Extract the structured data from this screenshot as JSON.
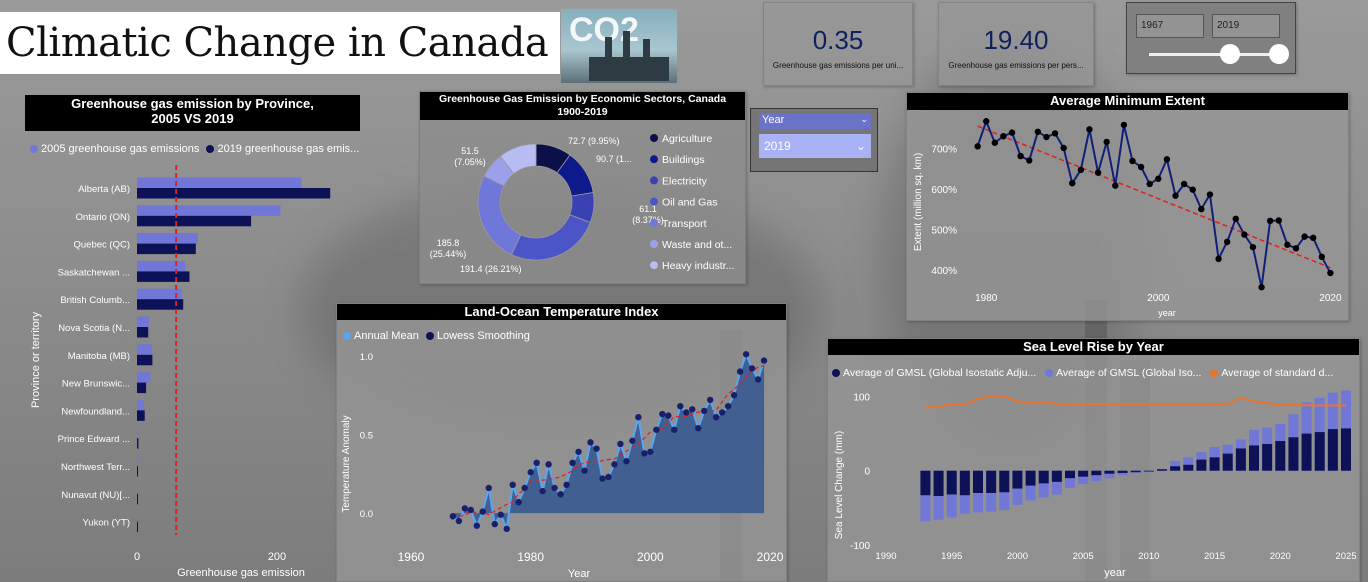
{
  "page": {
    "title": "Climatic Change in Canada",
    "image_text": "CO2"
  },
  "kpis": [
    {
      "value": "0.35",
      "label": "Greenhouse gas emissions per uni..."
    },
    {
      "value": "19.40",
      "label": "Greenhouse gas emissions per pers..."
    }
  ],
  "range_slicer": {
    "from": "1967",
    "to": "2019"
  },
  "year_slicer": {
    "label": "Year",
    "selected": "2019"
  },
  "colors": {
    "light_series": "#7177d6",
    "dark_series": "#0d1256",
    "red": "#e02020",
    "orange": "#e8742e",
    "accent_blue": "#5aa6ef"
  },
  "chart_data": [
    {
      "id": "province",
      "type": "bar",
      "orientation": "horizontal",
      "title": "Greenhouse gas emission by Province, 2005 VS 2019",
      "xlabel": "Greenhouse gas emission",
      "ylabel": "Province or territory",
      "xlim": [
        0,
        280
      ],
      "xticks": [
        "0",
        "200"
      ],
      "categories": [
        "Alberta (AB)",
        "Ontario (ON)",
        "Quebec (QC)",
        "Saskatchewan ...",
        "British Columb...",
        "Nova Scotia (N...",
        "Manitoba (MB)",
        "New Brunswic...",
        "Newfoundland...",
        "Prince Edward ...",
        "Northwest Terr...",
        "Nunavut (NU)[...",
        "Yukon (YT)"
      ],
      "series": [
        {
          "name": "2005 greenhouse gas emissions",
          "values": [
            235,
            205,
            87,
            69,
            64,
            17,
            21,
            19,
            10,
            2,
            2,
            1,
            1
          ]
        },
        {
          "name": "2019 greenhouse gas emis...",
          "values": [
            276,
            163,
            84,
            75,
            66,
            16,
            22,
            13,
            11,
            2,
            1,
            1,
            1
          ]
        }
      ],
      "reference_line": {
        "x": 56,
        "style": "dashed"
      }
    },
    {
      "id": "sectors",
      "type": "pie",
      "title": "Greenhouse Gas Emission by Economic Sectors, Canada 1900-2019",
      "slices": [
        {
          "name": "Agriculture",
          "value": 72.7,
          "label": "72.7 (9.95%)",
          "color": "#0b1048"
        },
        {
          "name": "Buildings",
          "value": 90.7,
          "label": "90.7 (1...",
          "color": "#0f1a8a"
        },
        {
          "name": "Electricity",
          "value": 61.1,
          "label": "61.1 (8.37%)",
          "color": "#3a41b2"
        },
        {
          "name": "Oil and Gas",
          "value": 191.4,
          "label": "191.4 (26.21%)",
          "color": "#4c55c8"
        },
        {
          "name": "Transport",
          "value": 185.8,
          "label": "185.8 (25.44%)",
          "color": "#6f78d9"
        },
        {
          "name": "Waste and ot...",
          "value": 51.5,
          "label": "51.5 (7.05%)",
          "color": "#9aa1ea"
        },
        {
          "name": "Heavy industr...",
          "value": 77.1,
          "label": "",
          "color": "#b7bdf3"
        }
      ]
    },
    {
      "id": "min_extent",
      "type": "line",
      "title": "Average Minimum Extent",
      "xlabel": "year",
      "ylabel": "Extent (million sq. km)",
      "xlim": [
        1978,
        2021
      ],
      "ylim": [
        3.6,
        7.8
      ],
      "xticks": [
        1980,
        2000,
        2020
      ],
      "yticks": [
        "400%",
        "500%",
        "600%",
        "700%"
      ],
      "x": [
        1979,
        1980,
        1981,
        1982,
        1983,
        1984,
        1985,
        1986,
        1987,
        1988,
        1989,
        1990,
        1991,
        1992,
        1993,
        1994,
        1995,
        1996,
        1997,
        1998,
        1999,
        2000,
        2001,
        2002,
        2003,
        2004,
        2005,
        2006,
        2007,
        2008,
        2009,
        2010,
        2011,
        2012,
        2013,
        2014,
        2015,
        2016,
        2017,
        2018,
        2019,
        2020
      ],
      "y": [
        7.05,
        7.67,
        7.14,
        7.3,
        7.39,
        6.81,
        6.7,
        7.41,
        7.28,
        7.37,
        7.01,
        6.14,
        6.47,
        7.47,
        6.4,
        7.16,
        6.08,
        7.58,
        6.69,
        6.54,
        6.12,
        6.25,
        6.73,
        5.83,
        6.12,
        5.98,
        5.5,
        5.86,
        4.27,
        4.69,
        5.26,
        4.87,
        4.56,
        3.57,
        5.21,
        5.22,
        4.62,
        4.53,
        4.82,
        4.79,
        4.32,
        3.92
      ],
      "trend": {
        "from": [
          1979,
          7.55
        ],
        "to": [
          2020,
          4.05
        ]
      }
    },
    {
      "id": "temperature",
      "type": "area",
      "title": "Land-Ocean Temperature Index",
      "xlabel": "Year",
      "ylabel": "Temperature Anomaly",
      "xlim": [
        1959,
        2022
      ],
      "ylim": [
        -0.12,
        1.05
      ],
      "xticks": [
        1960,
        1980,
        2000,
        2020
      ],
      "yticks": [
        "0.0",
        "0.5",
        "1.0"
      ],
      "series": [
        {
          "name": "Annual Mean",
          "x_start": 1967,
          "values": [
            -0.02,
            -0.05,
            0.03,
            0.02,
            -0.08,
            0.01,
            0.16,
            -0.07,
            -0.01,
            -0.1,
            0.18,
            0.07,
            0.16,
            0.26,
            0.32,
            0.14,
            0.31,
            0.16,
            0.12,
            0.18,
            0.32,
            0.39,
            0.27,
            0.45,
            0.41,
            0.22,
            0.23,
            0.31,
            0.44,
            0.33,
            0.46,
            0.61,
            0.38,
            0.39,
            0.53,
            0.63,
            0.62,
            0.53,
            0.68,
            0.64,
            0.66,
            0.54,
            0.65,
            0.72,
            0.61,
            0.64,
            0.68,
            0.75,
            0.9,
            1.01,
            0.92,
            0.85,
            0.97
          ]
        },
        {
          "name": "Lowess Smoothing"
        }
      ]
    },
    {
      "id": "sea_level",
      "type": "bar",
      "title": "Sea Level Rise by Year",
      "xlabel": "year",
      "ylabel": "Sea Level Change (mm)",
      "xlim": [
        1990,
        2025
      ],
      "ylim": [
        -100,
        110
      ],
      "xticks": [
        1990,
        1995,
        2000,
        2005,
        2010,
        2015,
        2020,
        2025
      ],
      "yticks": [
        "-100",
        "0",
        "100"
      ],
      "x_start": 1993,
      "series": [
        {
          "name": "Average of GMSL (Global Isostatic Adju...",
          "values": [
            -33,
            -34,
            -32,
            -33,
            -30,
            -30,
            -29,
            -24,
            -20,
            -17,
            -15,
            -10,
            -8,
            -6,
            -4,
            -3,
            -2,
            -1,
            2,
            6,
            8,
            15,
            18,
            23,
            30,
            34,
            36,
            40,
            45,
            50,
            52,
            56,
            57
          ]
        },
        {
          "name": "Average of GMSL (Global Iso...",
          "values": [
            -68,
            -66,
            -63,
            -58,
            -56,
            -55,
            -53,
            -46,
            -40,
            -36,
            -32,
            -23,
            -18,
            -14,
            -10,
            -6,
            -3,
            -2,
            2,
            13,
            18,
            25,
            32,
            35,
            42,
            55,
            58,
            63,
            76,
            92,
            98,
            105,
            108
          ]
        },
        {
          "name": "Average of standard d...",
          "values": [
            88,
            85,
            90,
            89,
            97,
            101,
            100,
            93,
            91,
            92,
            90,
            90,
            90,
            90,
            90,
            90,
            90,
            90,
            90,
            90,
            90,
            90,
            90,
            90,
            98,
            93,
            91,
            88,
            89,
            88,
            88,
            88,
            88
          ]
        }
      ]
    }
  ]
}
